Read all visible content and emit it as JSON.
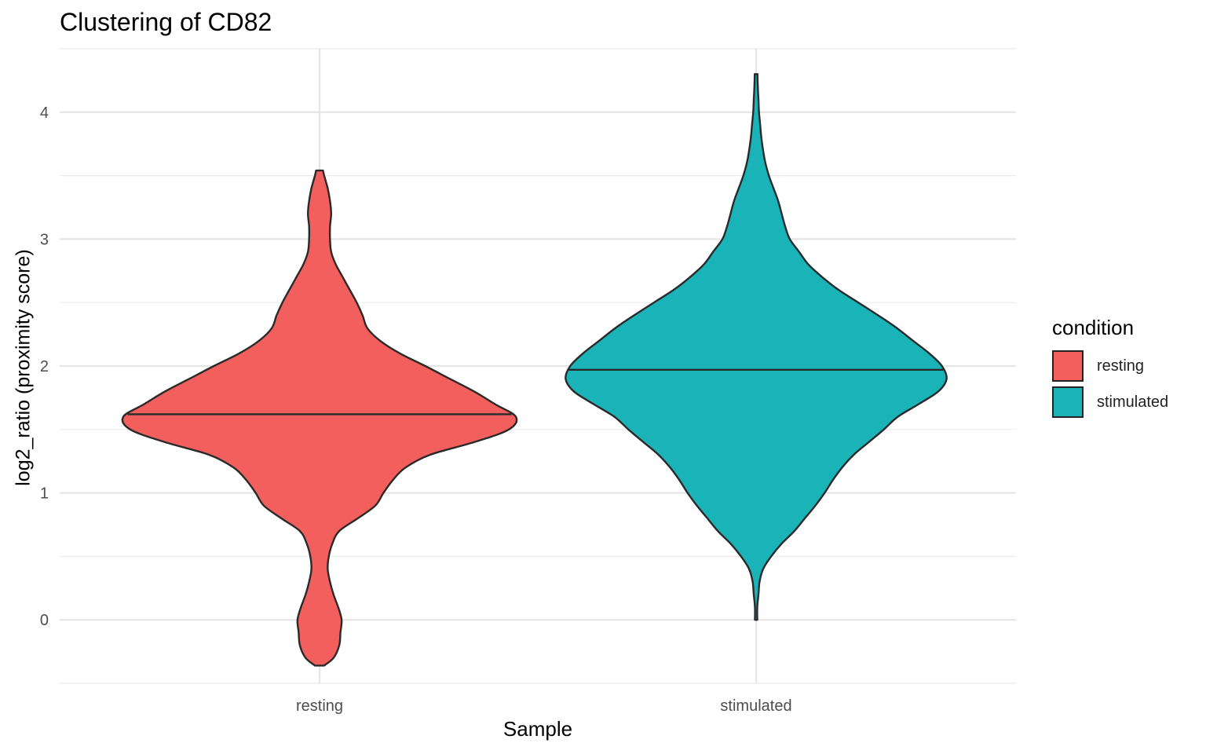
{
  "chart_data": {
    "type": "violin",
    "title": "Clustering of CD82",
    "xlabel": "Sample",
    "ylabel": "log2_ratio (proximity score)",
    "categories": [
      "resting",
      "stimulated"
    ],
    "ylim": [
      -0.5,
      4.5
    ],
    "yticks": [
      0,
      1,
      2,
      3,
      4
    ],
    "grid": true,
    "legend": {
      "title": "condition",
      "position": "right",
      "entries": [
        {
          "label": "resting",
          "color": "#F25F5C"
        },
        {
          "label": "stimulated",
          "color": "#19B3B8"
        }
      ]
    },
    "series": [
      {
        "name": "resting",
        "color": "#F25F5C",
        "median": 1.62,
        "min": -0.36,
        "max": 3.54,
        "density": [
          [
            -0.36,
            0.04
          ],
          [
            -0.3,
            0.12
          ],
          [
            -0.2,
            0.17
          ],
          [
            -0.1,
            0.18
          ],
          [
            0.0,
            0.19
          ],
          [
            0.1,
            0.16
          ],
          [
            0.2,
            0.12
          ],
          [
            0.3,
            0.09
          ],
          [
            0.4,
            0.07
          ],
          [
            0.5,
            0.08
          ],
          [
            0.6,
            0.11
          ],
          [
            0.7,
            0.17
          ],
          [
            0.8,
            0.33
          ],
          [
            0.9,
            0.48
          ],
          [
            1.0,
            0.55
          ],
          [
            1.1,
            0.63
          ],
          [
            1.2,
            0.74
          ],
          [
            1.3,
            0.95
          ],
          [
            1.4,
            1.33
          ],
          [
            1.5,
            1.63
          ],
          [
            1.6,
            1.69
          ],
          [
            1.7,
            1.51
          ],
          [
            1.8,
            1.33
          ],
          [
            1.9,
            1.12
          ],
          [
            2.0,
            0.91
          ],
          [
            2.1,
            0.69
          ],
          [
            2.2,
            0.52
          ],
          [
            2.3,
            0.41
          ],
          [
            2.4,
            0.37
          ],
          [
            2.5,
            0.32
          ],
          [
            2.6,
            0.26
          ],
          [
            2.7,
            0.2
          ],
          [
            2.8,
            0.14
          ],
          [
            2.9,
            0.1
          ],
          [
            3.0,
            0.09
          ],
          [
            3.1,
            0.09
          ],
          [
            3.2,
            0.1
          ],
          [
            3.3,
            0.09
          ],
          [
            3.4,
            0.07
          ],
          [
            3.5,
            0.04
          ],
          [
            3.54,
            0.03
          ]
        ]
      },
      {
        "name": "stimulated",
        "color": "#19B3B8",
        "median": 1.97,
        "min": 0.0,
        "max": 4.3,
        "density": [
          [
            0.0,
            0.01
          ],
          [
            0.1,
            0.01
          ],
          [
            0.2,
            0.02
          ],
          [
            0.3,
            0.03
          ],
          [
            0.4,
            0.06
          ],
          [
            0.5,
            0.13
          ],
          [
            0.6,
            0.22
          ],
          [
            0.7,
            0.33
          ],
          [
            0.8,
            0.42
          ],
          [
            0.9,
            0.51
          ],
          [
            1.0,
            0.59
          ],
          [
            1.1,
            0.66
          ],
          [
            1.2,
            0.74
          ],
          [
            1.3,
            0.84
          ],
          [
            1.4,
            0.97
          ],
          [
            1.5,
            1.1
          ],
          [
            1.6,
            1.22
          ],
          [
            1.7,
            1.4
          ],
          [
            1.8,
            1.57
          ],
          [
            1.9,
            1.64
          ],
          [
            2.0,
            1.6
          ],
          [
            2.1,
            1.49
          ],
          [
            2.2,
            1.35
          ],
          [
            2.3,
            1.21
          ],
          [
            2.4,
            1.05
          ],
          [
            2.5,
            0.88
          ],
          [
            2.6,
            0.71
          ],
          [
            2.7,
            0.57
          ],
          [
            2.8,
            0.45
          ],
          [
            2.9,
            0.37
          ],
          [
            3.0,
            0.29
          ],
          [
            3.1,
            0.25
          ],
          [
            3.2,
            0.22
          ],
          [
            3.3,
            0.19
          ],
          [
            3.4,
            0.15
          ],
          [
            3.5,
            0.11
          ],
          [
            3.6,
            0.08
          ],
          [
            3.7,
            0.06
          ],
          [
            3.8,
            0.045
          ],
          [
            3.9,
            0.035
          ],
          [
            4.0,
            0.025
          ],
          [
            4.1,
            0.02
          ],
          [
            4.2,
            0.015
          ],
          [
            4.3,
            0.012
          ]
        ]
      }
    ]
  }
}
